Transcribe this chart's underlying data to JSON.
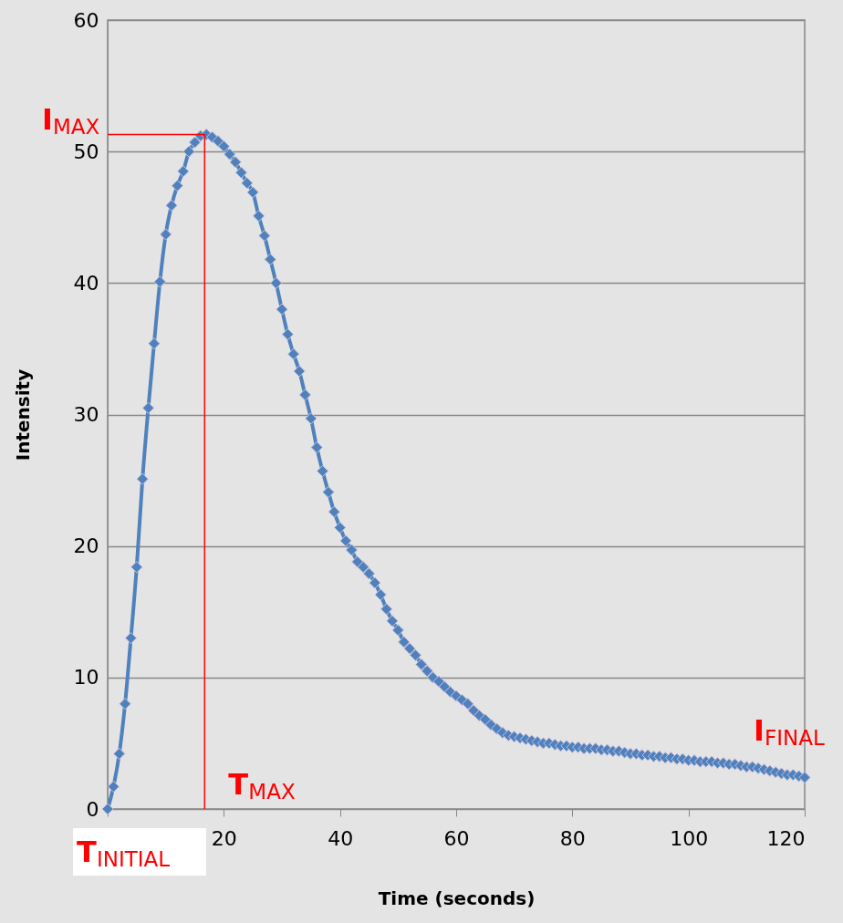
{
  "chart_data": {
    "type": "line",
    "xlabel": "Time (seconds)",
    "ylabel": "Intensity",
    "x": [
      0,
      1,
      2,
      3,
      4,
      5,
      6,
      7,
      8,
      9,
      10,
      11,
      12,
      13,
      14,
      15,
      16,
      17,
      18,
      19,
      20,
      21,
      22,
      23,
      24,
      25,
      26,
      27,
      28,
      29,
      30,
      31,
      32,
      33,
      34,
      35,
      36,
      37,
      38,
      39,
      40,
      41,
      42,
      43,
      44,
      45,
      46,
      47,
      48,
      49,
      50,
      51,
      52,
      53,
      54,
      55,
      56,
      57,
      58,
      59,
      60,
      61,
      62,
      63,
      64,
      65,
      66,
      67,
      68,
      69,
      70,
      71,
      72,
      73,
      74,
      75,
      76,
      77,
      78,
      79,
      80,
      81,
      82,
      83,
      84,
      85,
      86,
      87,
      88,
      89,
      90,
      91,
      92,
      93,
      94,
      95,
      96,
      97,
      98,
      99,
      100,
      101,
      102,
      103,
      104,
      105,
      106,
      107,
      108,
      109,
      110,
      111,
      112,
      113,
      114,
      115,
      116,
      117,
      118,
      119,
      120
    ],
    "series": [
      {
        "color": "#4f81bd",
        "values": [
          0,
          1.7,
          4.2,
          8.0,
          13.0,
          18.4,
          25.1,
          30.5,
          35.4,
          40.1,
          43.7,
          45.9,
          47.4,
          48.5,
          50.0,
          50.7,
          51.2,
          51.3,
          51.1,
          50.8,
          50.4,
          49.8,
          49.2,
          48.4,
          47.6,
          46.9,
          45.1,
          43.6,
          41.8,
          40.0,
          38.0,
          36.1,
          34.6,
          33.3,
          31.5,
          29.7,
          27.5,
          25.7,
          24.1,
          22.6,
          21.4,
          20.4,
          19.7,
          18.8,
          18.4,
          17.9,
          17.2,
          16.3,
          15.2,
          14.3,
          13.6,
          12.7,
          12.2,
          11.7,
          11.0,
          10.5,
          10.0,
          9.7,
          9.3,
          8.9,
          8.6,
          8.3,
          8.0,
          7.5,
          7.1,
          6.8,
          6.4,
          6.1,
          5.8,
          5.6,
          5.5,
          5.4,
          5.3,
          5.2,
          5.1,
          5.0,
          5.0,
          4.9,
          4.8,
          4.8,
          4.7,
          4.7,
          4.6,
          4.6,
          4.6,
          4.5,
          4.5,
          4.4,
          4.4,
          4.3,
          4.2,
          4.2,
          4.1,
          4.1,
          4.0,
          4.0,
          3.9,
          3.9,
          3.8,
          3.8,
          3.7,
          3.7,
          3.6,
          3.6,
          3.6,
          3.5,
          3.5,
          3.4,
          3.4,
          3.3,
          3.2,
          3.2,
          3.1,
          3.0,
          2.9,
          2.8,
          2.7,
          2.6,
          2.6,
          2.5,
          2.4
        ]
      }
    ],
    "xlim": [
      0,
      120
    ],
    "xticks": [
      {
        "value": 0,
        "label": null
      },
      20,
      40,
      60,
      80,
      100,
      120
    ],
    "ylim": [
      0,
      60
    ],
    "yticks": [
      0,
      10,
      20,
      30,
      40,
      50,
      60
    ],
    "grid": "y",
    "marker": "diamond",
    "line_style": "solid",
    "ref_lines": [
      {
        "axis": "y",
        "value": 51.3,
        "color": "#ff0000"
      },
      {
        "axis": "x",
        "value": 16.7,
        "color": "#ff0000"
      }
    ],
    "annotations": [
      {
        "text": "I$_{MAX}$",
        "x": 0,
        "y": 51.3
      },
      {
        "text": "T$_{MAX}$",
        "x": 16.7,
        "y": 0
      },
      {
        "text": "T$_{INITIAL}$",
        "x": 0,
        "y": 0
      },
      {
        "text": "I$_{FINAL}$",
        "x": 120,
        "y": 2.4
      }
    ]
  }
}
